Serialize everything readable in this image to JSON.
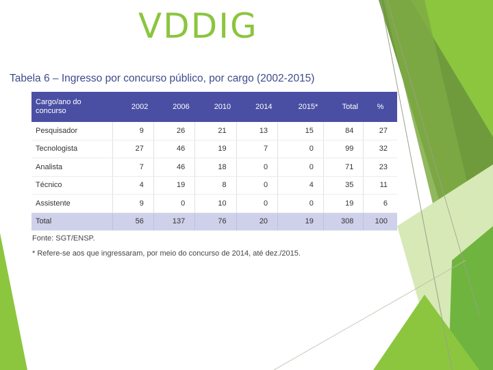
{
  "slide": {
    "title": "VDDIG"
  },
  "table": {
    "caption": "Tabela 6 – Ingresso por concurso público, por cargo (2002-2015)",
    "headers": [
      "Cargo/ano do concurso",
      "2002",
      "2006",
      "2010",
      "2014",
      "2015*",
      "Total",
      "%"
    ],
    "rows": [
      [
        "Pesquisador",
        "9",
        "26",
        "21",
        "13",
        "15",
        "84",
        "27"
      ],
      [
        "Tecnologista",
        "27",
        "46",
        "19",
        "7",
        "0",
        "99",
        "32"
      ],
      [
        "Analista",
        "7",
        "46",
        "18",
        "0",
        "0",
        "71",
        "23"
      ],
      [
        "Técnico",
        "4",
        "19",
        "8",
        "0",
        "4",
        "35",
        "11"
      ],
      [
        "Assistente",
        "9",
        "0",
        "10",
        "0",
        "0",
        "19",
        "6"
      ]
    ],
    "total_row": [
      "Total",
      "56",
      "137",
      "76",
      "20",
      "19",
      "308",
      "100"
    ],
    "source": "Fonte: SGT/ENSP.",
    "footnote": "* Refere-se aos que ingressaram, por meio do concurso de 2014, até dez./2015."
  },
  "colors": {
    "title_green": "#8bc53f",
    "header_blue": "#4a4fa3",
    "total_row": "#cfd0ea"
  }
}
